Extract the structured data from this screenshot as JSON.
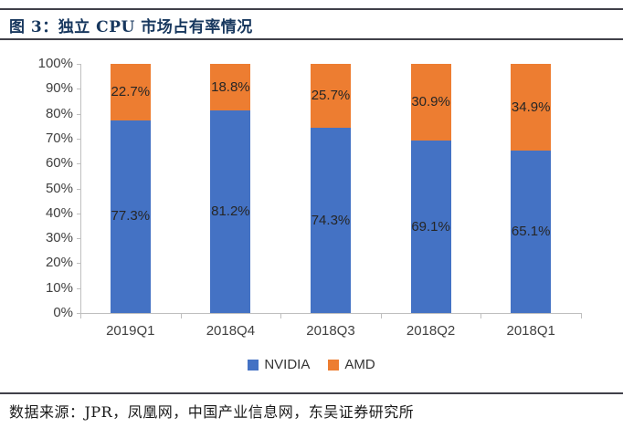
{
  "page": {
    "figure_title": "图 3：独立 CPU 市场占有率情况",
    "source_note": "数据来源：JPR，凤凰网，中国产业信息网，东吴证券研究所"
  },
  "colors": {
    "nvidia_blue": "#4472C4",
    "amd_orange": "#ED7D31",
    "title_navy": "#17375E",
    "rule_dark": "#404049",
    "axis_gray": "#BFBFBF",
    "label_dark": "#262626"
  },
  "chart_data": {
    "type": "bar",
    "stacked": true,
    "title": "独立 CPU 市场占有率情况",
    "categories": [
      "2019Q1",
      "2018Q4",
      "2018Q3",
      "2018Q2",
      "2018Q1"
    ],
    "series": [
      {
        "name": "NVIDIA",
        "color_key": "nvidia_blue",
        "values": [
          77.3,
          81.2,
          74.3,
          69.1,
          65.1
        ],
        "labels": [
          "77.3%",
          "81.2%",
          "74.3%",
          "69.1%",
          "65.1%"
        ]
      },
      {
        "name": "AMD",
        "color_key": "amd_orange",
        "values": [
          22.7,
          18.8,
          25.7,
          30.9,
          34.9
        ],
        "labels": [
          "22.7%",
          "18.8%",
          "25.7%",
          "30.9%",
          "34.9%"
        ]
      }
    ],
    "ylim": [
      0,
      100
    ],
    "yticks": [
      "0%",
      "10%",
      "20%",
      "30%",
      "40%",
      "50%",
      "60%",
      "70%",
      "80%",
      "90%",
      "100%"
    ],
    "legend": [
      "NVIDIA",
      "AMD"
    ],
    "legend_position": "bottom",
    "grid": false
  }
}
